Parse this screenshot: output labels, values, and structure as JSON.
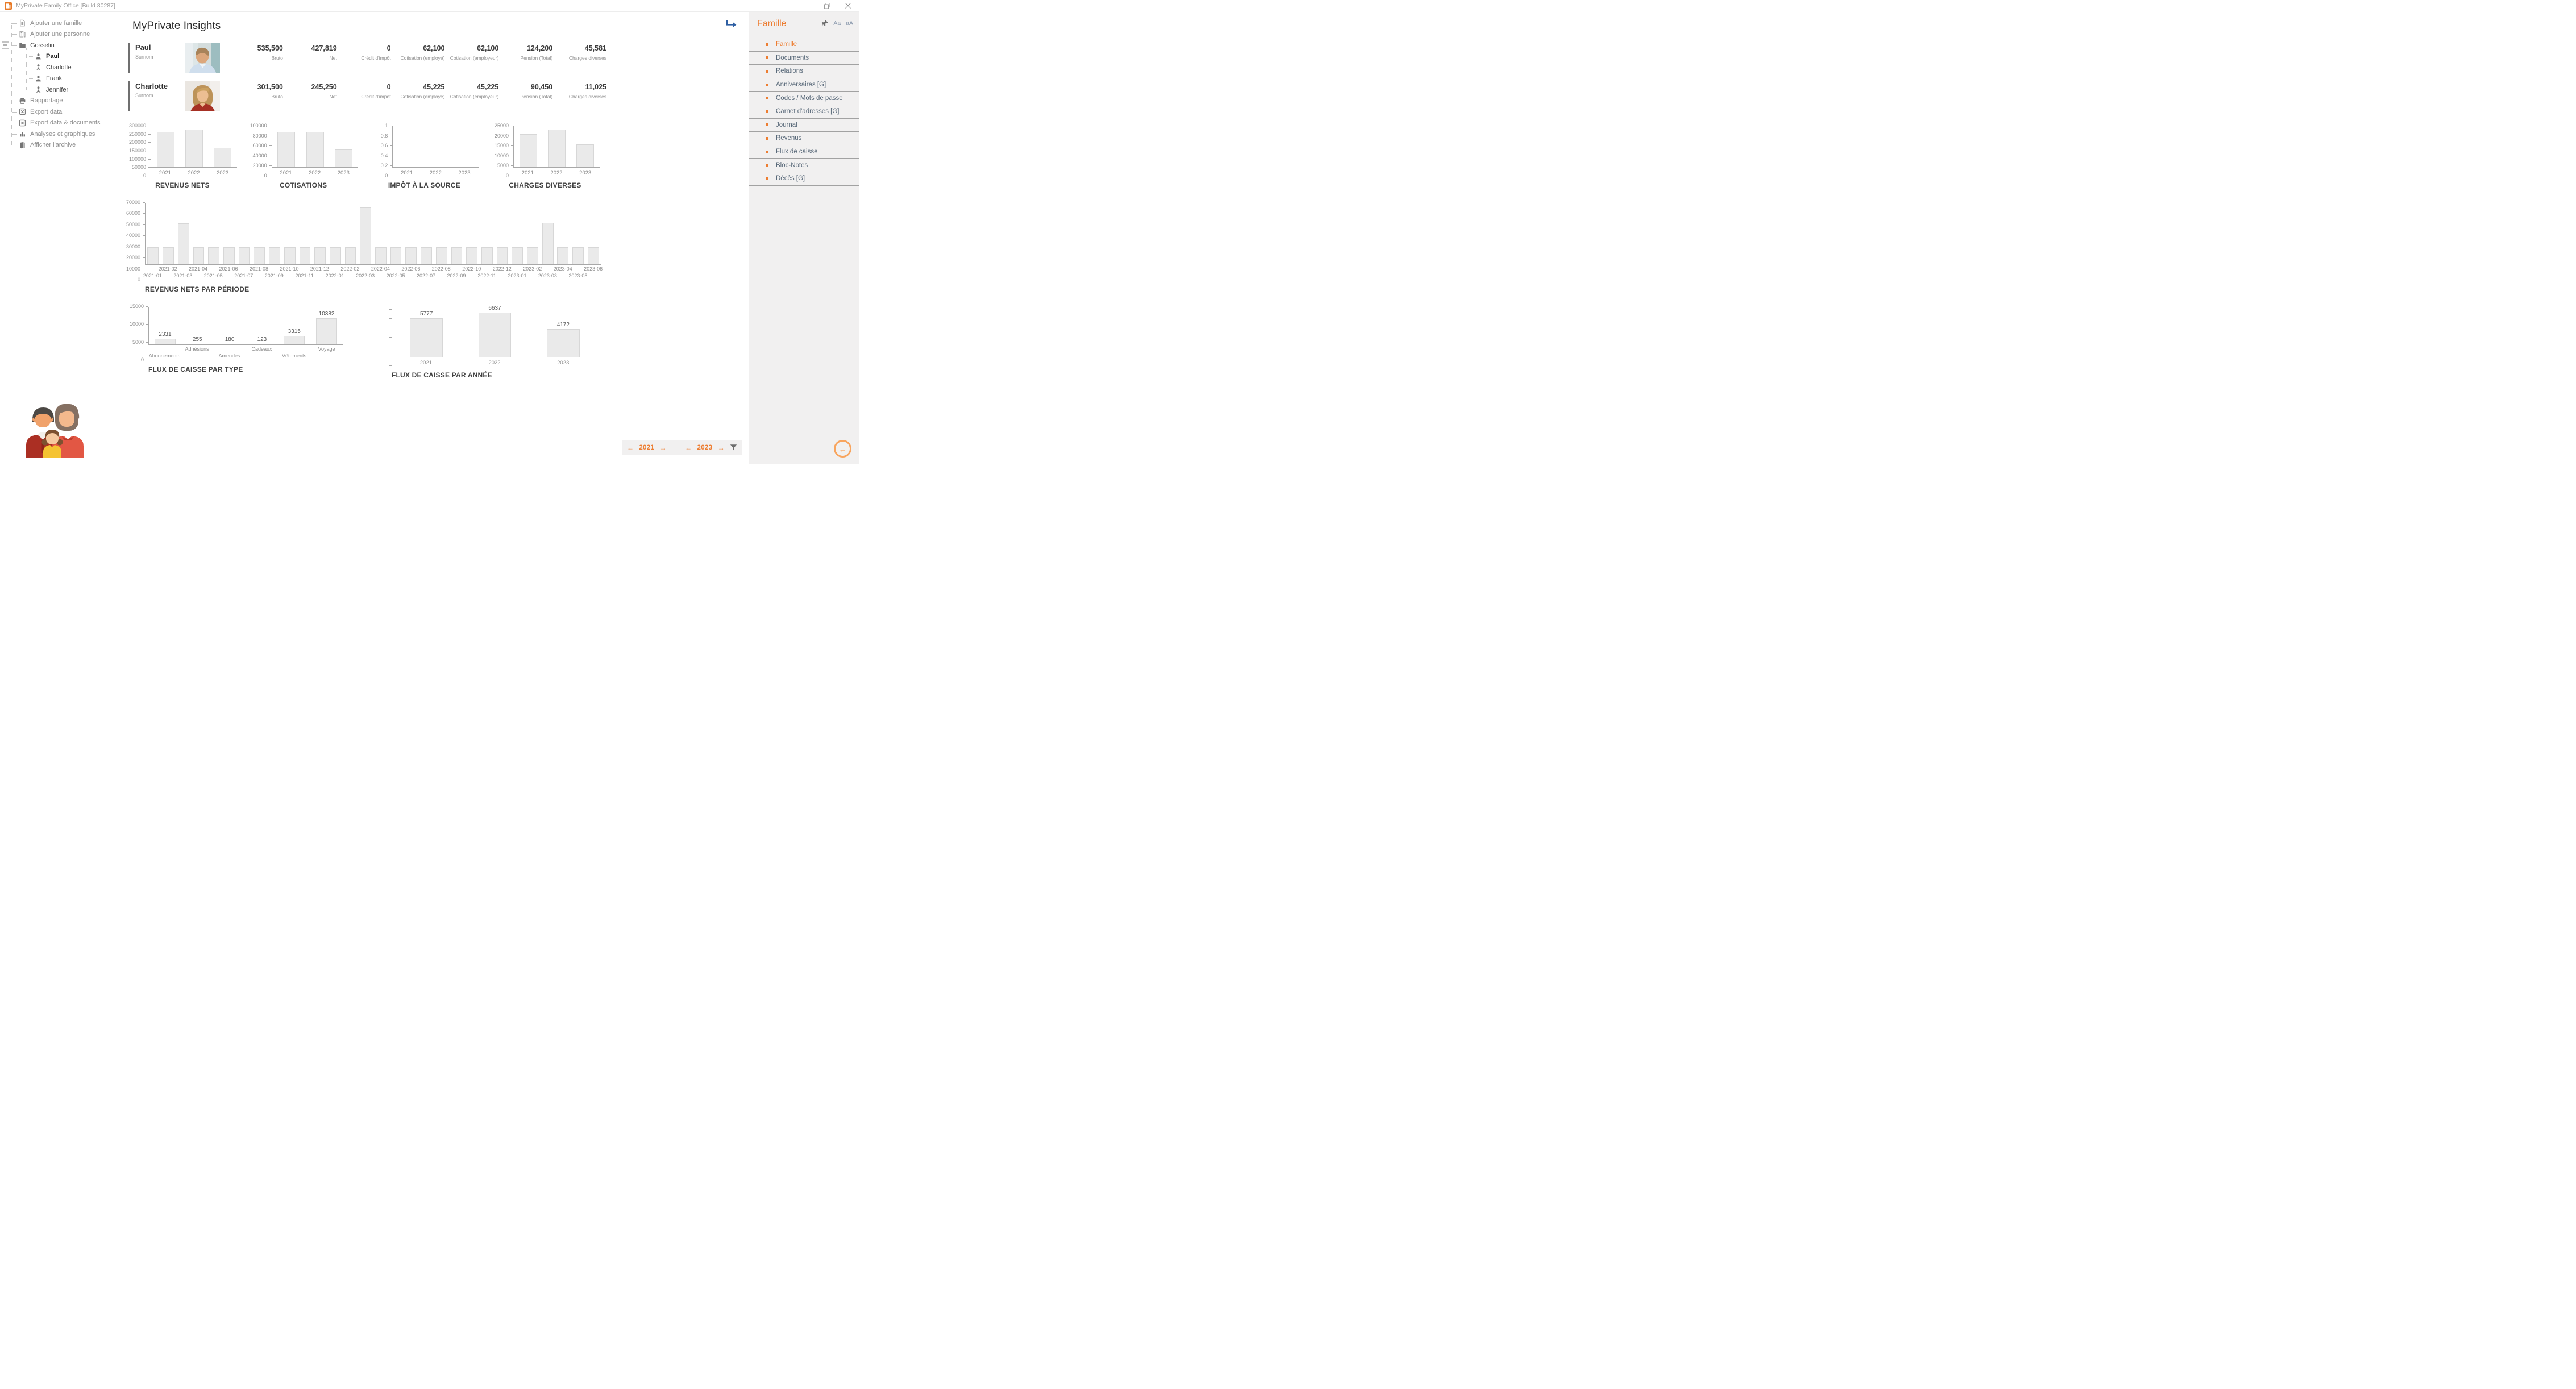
{
  "window": {
    "title": "MyPrivate Family Office [Build 80287]"
  },
  "colors": {
    "accent_orange": "#ED7D31",
    "bar_fill": "#eaeaea",
    "goto_arrow_blue": "#2e5fa3"
  },
  "sidebar": {
    "items": [
      {
        "label": "Ajouter une famille",
        "icon": "doc",
        "level": 0
      },
      {
        "label": "Ajouter une personne",
        "icon": "doc-person",
        "level": 0
      },
      {
        "label": "Gosselin",
        "icon": "folder",
        "level": 0,
        "dark": true,
        "expander": true
      },
      {
        "label": "Paul",
        "icon": "person",
        "level": 1,
        "bold": true
      },
      {
        "label": "Charlotte",
        "icon": "person-f",
        "level": 1
      },
      {
        "label": "Frank",
        "icon": "person",
        "level": 1
      },
      {
        "label": "Jennifer",
        "icon": "person-f",
        "level": 1
      },
      {
        "label": "Rapportage",
        "icon": "printer",
        "level": 0
      },
      {
        "label": "Export data",
        "icon": "excel",
        "level": 0
      },
      {
        "label": "Export data & documents",
        "icon": "excel",
        "level": 0
      },
      {
        "label": "Analyses et graphiques",
        "icon": "chart",
        "level": 0
      },
      {
        "label": "Afficher l'archive",
        "icon": "book",
        "level": 0
      }
    ]
  },
  "main": {
    "heading": "MyPrivate Insights",
    "persons": [
      {
        "name": "Paul",
        "subtitle": "Surnom",
        "photo": "paul",
        "stats": [
          {
            "value": "535,500",
            "label": "Bruto"
          },
          {
            "value": "427,819",
            "label": "Net"
          },
          {
            "value": "0",
            "label": "Crédit d'impôt"
          },
          {
            "value": "62,100",
            "label": "Cotisation (employé)"
          },
          {
            "value": "62,100",
            "label": "Cotisation (employeur)"
          },
          {
            "value": "124,200",
            "label": "Pension (Total)"
          },
          {
            "value": "45,581",
            "label": "Charges diverses"
          }
        ]
      },
      {
        "name": "Charlotte",
        "subtitle": "Surnom",
        "photo": "charlotte",
        "stats": [
          {
            "value": "301,500",
            "label": "Bruto"
          },
          {
            "value": "245,250",
            "label": "Net"
          },
          {
            "value": "0",
            "label": "Crédit d'impôt"
          },
          {
            "value": "45,225",
            "label": "Cotisation (employé)"
          },
          {
            "value": "45,225",
            "label": "Cotisation (employeur)"
          },
          {
            "value": "90,450",
            "label": "Pension (Total)"
          },
          {
            "value": "11,025",
            "label": "Charges diverses"
          }
        ]
      }
    ]
  },
  "chart_data": [
    {
      "id": "revenus_nets",
      "type": "bar",
      "title": "REVENUS NETS",
      "categories": [
        "2021",
        "2022",
        "2023"
      ],
      "values": [
        258000,
        275000,
        143000
      ],
      "ymax": 300000,
      "yticks": [
        "0",
        "50000",
        "100000",
        "150000",
        "200000",
        "250000",
        "300000"
      ],
      "stagger": false,
      "show_values": false
    },
    {
      "id": "cotisations",
      "type": "bar",
      "title": "COTISATIONS",
      "categories": [
        "2021",
        "2022",
        "2023"
      ],
      "values": [
        86000,
        86000,
        43000
      ],
      "ymax": 100000,
      "yticks": [
        "0",
        "20000",
        "40000",
        "60000",
        "80000",
        "100000"
      ],
      "stagger": false,
      "show_values": false
    },
    {
      "id": "impot_source",
      "type": "bar",
      "title": "IMPÔT À LA SOURCE",
      "categories": [
        "2021",
        "2022",
        "2023"
      ],
      "values": [
        0,
        0,
        0
      ],
      "ymax": 1,
      "yticks": [
        "0",
        "0.2",
        "0.4",
        "0.6",
        "0.8",
        "1"
      ],
      "stagger": false,
      "show_values": false
    },
    {
      "id": "charges_diverses",
      "type": "bar",
      "title": "CHARGES DIVERSES",
      "categories": [
        "2021",
        "2022",
        "2023"
      ],
      "values": [
        20200,
        23000,
        13800
      ],
      "ymax": 25000,
      "yticks": [
        "0",
        "5000",
        "10000",
        "15000",
        "20000",
        "25000"
      ],
      "stagger": false,
      "show_values": false
    },
    {
      "id": "revenus_periode",
      "type": "bar",
      "title": "REVENUS NETS PAR PÉRIODE",
      "categories": [
        "2021-01",
        "2021-02",
        "2021-03",
        "2021-04",
        "2021-05",
        "2021-06",
        "2021-07",
        "2021-08",
        "2021-09",
        "2021-10",
        "2021-11",
        "2021-12",
        "2022-01",
        "2022-02",
        "2022-03",
        "2022-04",
        "2022-05",
        "2022-06",
        "2022-07",
        "2022-08",
        "2022-09",
        "2022-10",
        "2022-11",
        "2022-12",
        "2023-01",
        "2023-02",
        "2023-03",
        "2023-04",
        "2023-05",
        "2023-06"
      ],
      "values": [
        19300,
        19300,
        47000,
        19300,
        19300,
        19300,
        19300,
        19300,
        19300,
        19300,
        19300,
        19300,
        19300,
        19300,
        65000,
        19300,
        19300,
        19300,
        19300,
        19300,
        19300,
        19300,
        19300,
        19300,
        19300,
        19300,
        47500,
        19300,
        19300,
        19300
      ],
      "ymax": 70000,
      "yticks": [
        "0",
        "10000",
        "20000",
        "30000",
        "40000",
        "50000",
        "60000",
        "70000"
      ],
      "stagger": true,
      "show_values": false
    },
    {
      "id": "flux_type",
      "type": "bar",
      "title": "FLUX DE CAISSE PAR TYPE",
      "categories": [
        "Abonnements",
        "Adhésions",
        "Amendes",
        "Cadeaux",
        "Vêtements",
        "Voyage"
      ],
      "values": [
        2331,
        255,
        180,
        123,
        3315,
        10382
      ],
      "ymax": 15000,
      "yticks": [
        "0",
        "5000",
        "10000",
        "15000"
      ],
      "stagger": true,
      "show_values": true
    },
    {
      "id": "flux_annee",
      "type": "bar",
      "title": "FLUX DE CAISSE PAR ANNÉE",
      "categories": [
        "2021",
        "2022",
        "2023"
      ],
      "values": [
        5777,
        6637,
        4172
      ],
      "ymax": 8500,
      "yticks": [
        "",
        "",
        "",
        "",
        "",
        "",
        "",
        ""
      ],
      "stagger": false,
      "show_values": true
    }
  ],
  "year_nav": {
    "prev_arrow": "←",
    "next_arrow": "→",
    "left_year": "2021",
    "right_year": "2023"
  },
  "right_panel": {
    "title": "Famille",
    "font_small": "Aa",
    "font_large": "aA",
    "back_arrow": "←",
    "items": [
      {
        "label": "Famille",
        "active": true
      },
      {
        "label": "Documents"
      },
      {
        "label": "Relations"
      },
      {
        "label": "Anniversaires [G]"
      },
      {
        "label": "Codes / Mots de passe"
      },
      {
        "label": "Carnet d'adresses [G]"
      },
      {
        "label": "Journal"
      },
      {
        "label": "Revenus"
      },
      {
        "label": "Flux de caisse"
      },
      {
        "label": "Bloc-Notes"
      },
      {
        "label": "Décès [G]"
      }
    ]
  }
}
